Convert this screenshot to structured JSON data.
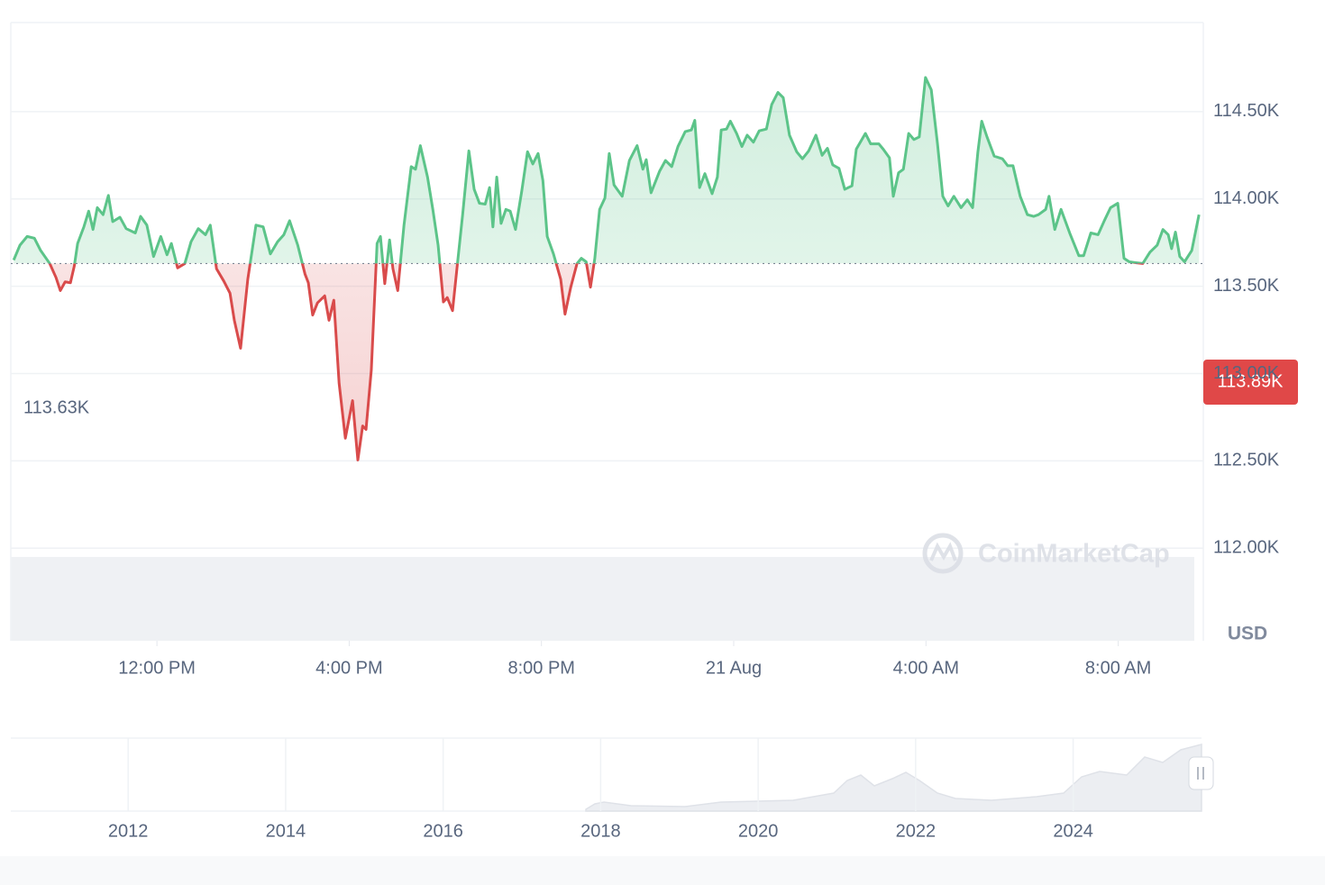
{
  "chart_data": {
    "type": "line",
    "x": [
      9.02,
      9.15,
      9.3,
      9.45,
      9.58,
      9.77,
      9.9,
      9.99,
      10.09,
      10.2,
      10.28,
      10.35,
      10.48,
      10.58,
      10.67,
      10.76,
      10.88,
      10.99,
      11.08,
      11.23,
      11.36,
      11.55,
      11.66,
      11.79,
      11.93,
      12.08,
      12.21,
      12.3,
      12.43,
      12.58,
      12.71,
      12.86,
      13.01,
      13.11,
      13.24,
      13.39,
      13.52,
      13.61,
      13.74,
      13.89,
      14.06,
      14.21,
      14.36,
      14.51,
      14.64,
      14.76,
      14.93,
      15.08,
      15.15,
      15.24,
      15.34,
      15.49,
      15.58,
      15.68,
      15.79,
      15.92,
      16.07,
      16.18,
      16.28,
      16.35,
      16.46,
      16.58,
      16.65,
      16.74,
      16.84,
      16.91,
      17.01,
      17.14,
      17.29,
      17.38,
      17.48,
      17.63,
      17.74,
      17.85,
      17.96,
      18.04,
      18.15,
      18.26,
      18.36,
      18.49,
      18.6,
      18.71,
      18.83,
      18.92,
      18.99,
      19.07,
      19.16,
      19.26,
      19.35,
      19.46,
      19.59,
      19.71,
      19.82,
      19.93,
      20.03,
      20.12,
      20.25,
      20.4,
      20.49,
      20.61,
      20.74,
      20.83,
      20.93,
      21.02,
      21.11,
      21.21,
      21.32,
      21.41,
      21.51,
      21.68,
      21.83,
      21.99,
      22.11,
      22.18,
      22.28,
      22.46,
      22.58,
      22.71,
      22.84,
      22.99,
      23.12,
      23.19,
      23.29,
      23.4,
      23.55,
      23.66,
      23.74,
      23.85,
      23.93,
      24.06,
      24.17,
      24.28,
      24.41,
      24.53,
      24.68,
      24.79,
      24.92,
      25.03,
      25.16,
      25.31,
      25.43,
      25.56,
      25.71,
      25.84,
      25.95,
      26.06,
      26.19,
      26.31,
      26.46,
      26.55,
      26.74,
      26.85,
      27.02,
      27.11,
      27.24,
      27.32,
      27.43,
      27.53,
      27.64,
      27.75,
      27.86,
      27.99,
      28.11,
      28.24,
      28.35,
      28.46,
      28.58,
      28.73,
      28.86,
      28.97,
      29.08,
      29.16,
      29.27,
      29.42,
      29.59,
      29.7,
      29.81,
      29.96,
      30.11,
      30.24,
      30.34,
      30.49,
      30.56,
      30.68,
      30.81,
      30.99,
      31.18,
      31.28,
      31.43,
      31.58,
      31.71,
      31.84,
      31.99,
      32.12,
      32.23,
      32.36,
      32.51,
      32.66,
      32.81,
      32.93,
      33.04,
      33.11,
      33.19,
      33.28,
      33.38,
      33.53,
      33.68
    ],
    "series": [
      {
        "up_color": "#5cc489",
        "down_color": "#d94b4b",
        "values": [
          113650,
          113735,
          113785,
          113775,
          113705,
          113630,
          113550,
          113475,
          113525,
          113520,
          113615,
          113745,
          113840,
          113930,
          113825,
          113950,
          113910,
          114020,
          113870,
          113895,
          113830,
          113805,
          113900,
          113850,
          113670,
          113785,
          113680,
          113745,
          113605,
          113630,
          113755,
          113830,
          113795,
          113850,
          113600,
          113530,
          113460,
          113305,
          113145,
          113540,
          113850,
          113840,
          113685,
          113755,
          113795,
          113875,
          113735,
          113570,
          113520,
          113335,
          113405,
          113445,
          113305,
          113420,
          112945,
          112630,
          112845,
          112505,
          112700,
          112680,
          113020,
          113745,
          113785,
          113515,
          113765,
          113600,
          113475,
          113850,
          114185,
          114170,
          114305,
          114125,
          113940,
          113735,
          113410,
          113435,
          113360,
          113650,
          113910,
          114275,
          114055,
          113975,
          113970,
          114065,
          113840,
          114125,
          113860,
          113940,
          113930,
          113825,
          114045,
          114270,
          114200,
          114260,
          114105,
          113785,
          113685,
          113540,
          113340,
          113495,
          113630,
          113660,
          113640,
          113495,
          113660,
          113940,
          114005,
          114260,
          114080,
          114015,
          114220,
          114305,
          114170,
          114225,
          114035,
          114160,
          114220,
          114185,
          114300,
          114385,
          114395,
          114450,
          114065,
          114145,
          114030,
          114125,
          114395,
          114400,
          114445,
          114375,
          114300,
          114365,
          114325,
          114390,
          114400,
          114540,
          114610,
          114580,
          114365,
          114270,
          114230,
          114275,
          114365,
          114250,
          114290,
          114195,
          114175,
          114055,
          114075,
          114285,
          114375,
          114315,
          114315,
          114285,
          114235,
          114015,
          114150,
          114170,
          114375,
          114340,
          114355,
          114695,
          114625,
          114315,
          114015,
          113960,
          114015,
          113950,
          113995,
          113950,
          114270,
          114445,
          114355,
          114245,
          114230,
          114190,
          114190,
          114015,
          113910,
          113900,
          113910,
          113940,
          114015,
          113825,
          113940,
          113805,
          113675,
          113675,
          113805,
          113795,
          113875,
          113950,
          113975,
          113660,
          113640,
          113635,
          113630,
          113695,
          113735,
          113825,
          113795,
          113715,
          113810,
          113670,
          113640,
          113705,
          113910
        ]
      }
    ],
    "baseline": {
      "value": 113630,
      "label": "113.63K"
    },
    "current_price_label": "113.89K",
    "currency": "USD",
    "watermark": "CoinMarketCap",
    "xlim": [
      8.96,
      33.77
    ],
    "xticks": [
      {
        "value": 12,
        "label": "12:00 PM"
      },
      {
        "value": 16,
        "label": "4:00 PM"
      },
      {
        "value": 20,
        "label": "8:00 PM"
      },
      {
        "value": 24,
        "label": "21 Aug"
      },
      {
        "value": 28,
        "label": "4:00 AM"
      },
      {
        "value": 32,
        "label": "8:00 AM"
      }
    ],
    "ylim": [
      111470,
      115010
    ],
    "yticks": [
      {
        "value": 112000,
        "label": "112.00K"
      },
      {
        "value": 112500,
        "label": "112.50K"
      },
      {
        "value": 113000,
        "label": "113.00K"
      },
      {
        "value": 113500,
        "label": "113.50K"
      },
      {
        "value": 114000,
        "label": "114.00K"
      },
      {
        "value": 114500,
        "label": "114.50K"
      }
    ],
    "grid": true,
    "navigator": {
      "xlim": [
        2010.51,
        2025.63
      ],
      "xticks": [
        2012,
        2014,
        2016,
        2018,
        2020,
        2022,
        2024
      ]
    }
  }
}
